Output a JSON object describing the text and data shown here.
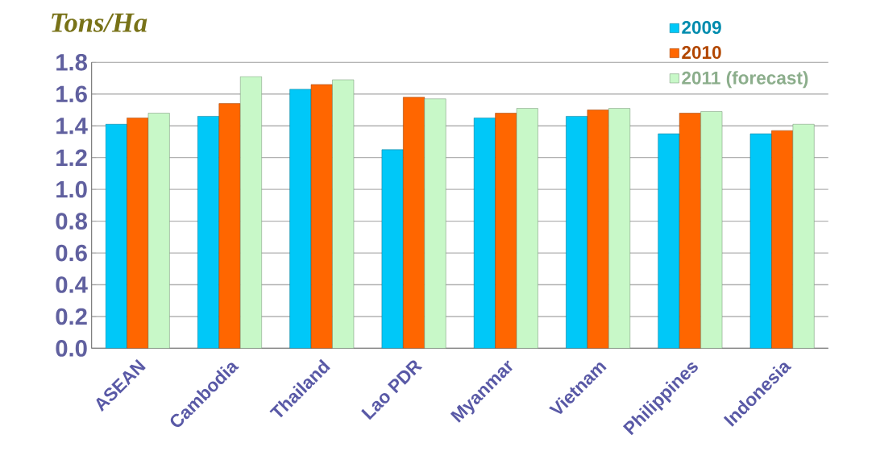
{
  "chart_data": {
    "type": "bar",
    "ylabel": "Tons/Ha",
    "categories": [
      "ASEAN",
      "Cambodia",
      "Thailand",
      "Lao PDR",
      "Myanmar",
      "Vietnam",
      "Philippines",
      "Indonesia"
    ],
    "series": [
      {
        "name": "2009",
        "color": "#00c8f8",
        "values": [
          1.41,
          1.46,
          1.63,
          1.25,
          1.45,
          1.46,
          1.35,
          1.35
        ]
      },
      {
        "name": "2010",
        "color": "#ff6600",
        "values": [
          1.45,
          1.54,
          1.66,
          1.58,
          1.48,
          1.5,
          1.48,
          1.37
        ]
      },
      {
        "name": "2011 (forecast)",
        "color": "#c8f8c8",
        "values": [
          1.48,
          1.71,
          1.69,
          1.57,
          1.51,
          1.51,
          1.49,
          1.41
        ]
      }
    ],
    "ylim": [
      0,
      1.8
    ],
    "yticks": [
      {
        "value": 0,
        "label": "0.0"
      },
      {
        "value": 0.2,
        "label": "0.2"
      },
      {
        "value": 0.4,
        "label": "0.4"
      },
      {
        "value": 0.6,
        "label": "0.6"
      },
      {
        "value": 0.8,
        "label": "0.8"
      },
      {
        "value": 1.0,
        "label": "1.0"
      },
      {
        "value": 1.2,
        "label": "1.2"
      },
      {
        "value": 1.4,
        "label": "1.4"
      },
      {
        "value": 1.6,
        "label": "1.6"
      },
      {
        "value": 1.8,
        "label": "1.8"
      }
    ],
    "grid": "y",
    "legend": "top right"
  }
}
